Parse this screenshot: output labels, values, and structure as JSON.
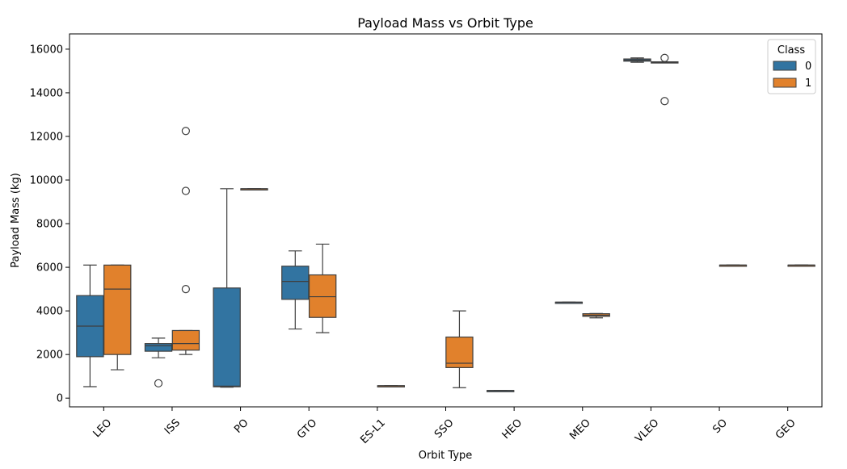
{
  "chart_data": {
    "type": "box",
    "title": "Payload Mass vs Orbit Type",
    "xlabel": "Orbit Type",
    "ylabel": "Payload Mass (kg)",
    "ylim": [
      -400,
      16700
    ],
    "yticks": [
      0,
      2000,
      4000,
      6000,
      8000,
      10000,
      12000,
      14000,
      16000
    ],
    "categories": [
      "LEO",
      "ISS",
      "PO",
      "GTO",
      "ES-L1",
      "SSO",
      "HEO",
      "MEO",
      "VLEO",
      "SO",
      "GEO"
    ],
    "legend": {
      "title": "Class",
      "placement": "top-right"
    },
    "series": [
      {
        "name": "0",
        "color": "#3274a1",
        "boxes": [
          {
            "category": "LEO",
            "min": 525,
            "q1": 1900,
            "median": 3300,
            "q3": 4700,
            "max": 6100,
            "outliers": []
          },
          {
            "category": "ISS",
            "min": 1850,
            "q1": 2150,
            "median": 2400,
            "q3": 2500,
            "max": 2750,
            "outliers": [
              680
            ]
          },
          {
            "category": "PO",
            "min": 500,
            "q1": 520,
            "median": 550,
            "q3": 5050,
            "max": 9600,
            "outliers": []
          },
          {
            "category": "GTO",
            "min": 3170,
            "q1": 4530,
            "median": 5350,
            "q3": 6050,
            "max": 6750,
            "outliers": []
          },
          {
            "category": "HEO",
            "min": 350,
            "q1": 350,
            "median": 350,
            "q3": 350,
            "max": 350,
            "outliers": []
          },
          {
            "category": "MEO",
            "min": 4400,
            "q1": 4400,
            "median": 4400,
            "q3": 4400,
            "max": 4400,
            "outliers": []
          },
          {
            "category": "VLEO",
            "min": 15400,
            "q1": 15450,
            "median": 15500,
            "q3": 15550,
            "max": 15600,
            "outliers": []
          }
        ]
      },
      {
        "name": "1",
        "color": "#e1812c",
        "boxes": [
          {
            "category": "LEO",
            "min": 1300,
            "q1": 2000,
            "median": 5000,
            "q3": 6100,
            "max": 6100,
            "outliers": []
          },
          {
            "category": "ISS",
            "min": 2000,
            "q1": 2200,
            "median": 2500,
            "q3": 3100,
            "max": 3100,
            "outliers": [
              5000,
              9500,
              12250
            ]
          },
          {
            "category": "PO",
            "min": 9600,
            "q1": 9600,
            "median": 9600,
            "q3": 9600,
            "max": 9600,
            "outliers": []
          },
          {
            "category": "GTO",
            "min": 3000,
            "q1": 3700,
            "median": 4650,
            "q3": 5650,
            "max": 7060,
            "outliers": []
          },
          {
            "category": "ES-L1",
            "min": 570,
            "q1": 570,
            "median": 570,
            "q3": 570,
            "max": 570,
            "outliers": []
          },
          {
            "category": "SSO",
            "min": 480,
            "q1": 1400,
            "median": 1600,
            "q3": 2800,
            "max": 4000,
            "outliers": []
          },
          {
            "category": "MEO",
            "min": 3680,
            "q1": 3750,
            "median": 3800,
            "q3": 3870,
            "max": 3880,
            "outliers": []
          },
          {
            "category": "VLEO",
            "min": 15380,
            "q1": 15380,
            "median": 15400,
            "q3": 15420,
            "max": 15420,
            "outliers": [
              13620,
              15600
            ]
          },
          {
            "category": "SO",
            "min": 6100,
            "q1": 6100,
            "median": 6100,
            "q3": 6100,
            "max": 6100,
            "outliers": []
          },
          {
            "category": "GEO",
            "min": 6100,
            "q1": 6100,
            "median": 6100,
            "q3": 6100,
            "max": 6100,
            "outliers": []
          }
        ]
      }
    ]
  }
}
